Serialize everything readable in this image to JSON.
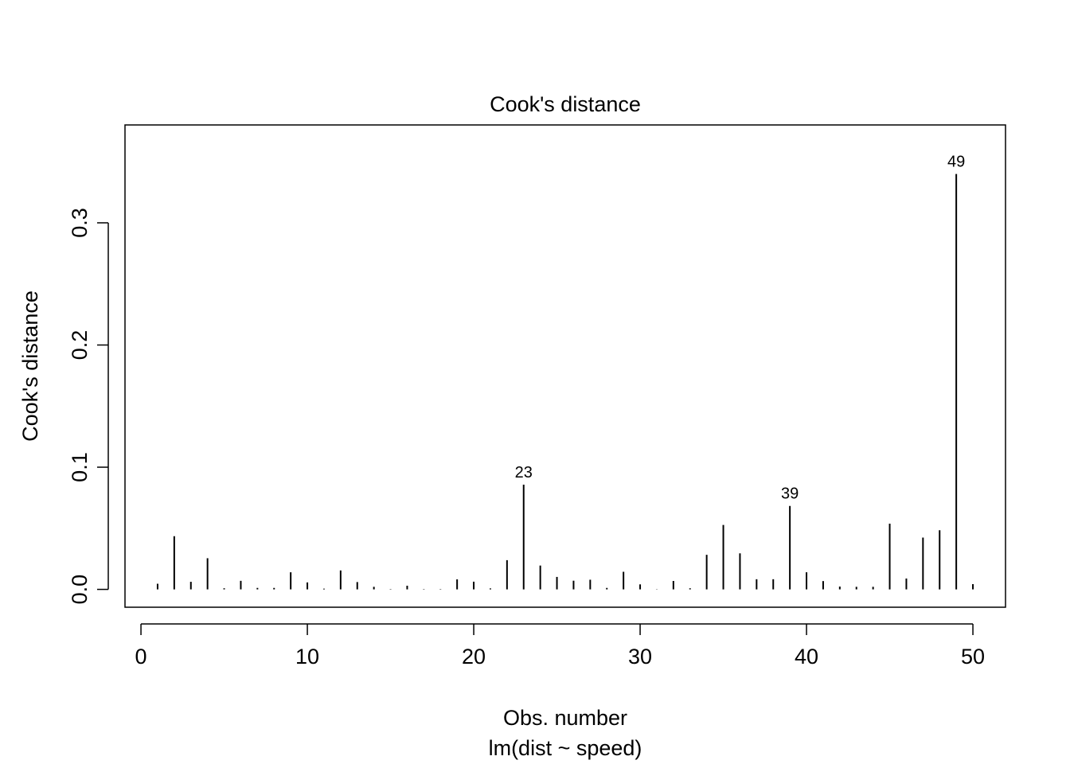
{
  "chart_data": {
    "type": "bar",
    "style": "vertical-lines",
    "title": "Cook's distance",
    "xlabel": "Obs. number",
    "subtitle": "lm(dist ~ speed)",
    "ylabel": "Cook's distance",
    "xlim": [
      -0.96,
      51.96
    ],
    "ylim": [
      -0.0146,
      0.3801
    ],
    "xticks": [
      0,
      10,
      20,
      30,
      40,
      50
    ],
    "yticks": [
      0.0,
      0.1,
      0.2,
      0.3
    ],
    "ytick_labels": [
      "0.0",
      "0.1",
      "0.2",
      "0.3"
    ],
    "grid": false,
    "x": [
      1,
      2,
      3,
      4,
      5,
      6,
      7,
      8,
      9,
      10,
      11,
      12,
      13,
      14,
      15,
      16,
      17,
      18,
      19,
      20,
      21,
      22,
      23,
      24,
      25,
      26,
      27,
      28,
      29,
      30,
      31,
      32,
      33,
      34,
      35,
      36,
      37,
      38,
      39,
      40,
      41,
      42,
      43,
      44,
      45,
      46,
      47,
      48,
      49,
      50
    ],
    "values": [
      0.0046,
      0.0435,
      0.0062,
      0.0255,
      0.0009,
      0.007,
      0.0012,
      0.0012,
      0.014,
      0.0057,
      0.0006,
      0.0155,
      0.006,
      0.0021,
      0.0003,
      0.003,
      0.0003,
      0.0003,
      0.0082,
      0.0063,
      0.0008,
      0.0239,
      0.0857,
      0.0195,
      0.0102,
      0.0071,
      0.0079,
      0.0012,
      0.0144,
      0.0041,
      0.0002,
      0.0069,
      0.0009,
      0.0283,
      0.0527,
      0.0295,
      0.0083,
      0.0083,
      0.0683,
      0.014,
      0.0068,
      0.0023,
      0.0021,
      0.0021,
      0.0538,
      0.0089,
      0.0424,
      0.0484,
      0.34,
      0.0043
    ],
    "annotations": [
      {
        "x": 23,
        "label": "23"
      },
      {
        "x": 39,
        "label": "39"
      },
      {
        "x": 49,
        "label": "49"
      }
    ],
    "color": "#000000"
  }
}
